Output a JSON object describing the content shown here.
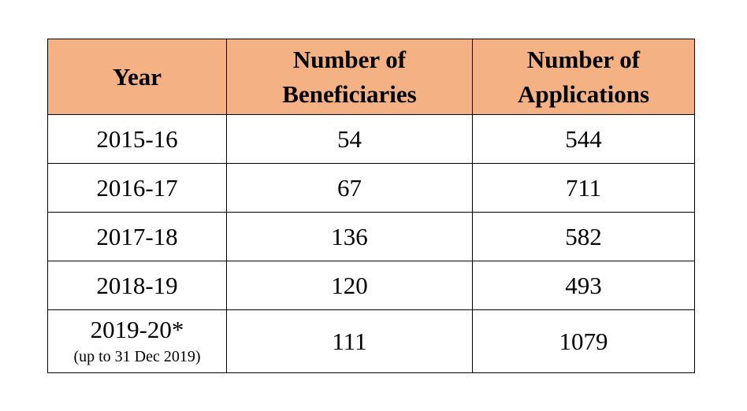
{
  "table": {
    "headers": {
      "year": "Year",
      "beneficiaries_line1": "Number of",
      "beneficiaries_line2": "Beneficiaries",
      "applications_line1": "Number of",
      "applications_line2": "Applications"
    },
    "rows": [
      {
        "year": "2015-16",
        "beneficiaries": "54",
        "applications": "544",
        "note": ""
      },
      {
        "year": "2016-17",
        "beneficiaries": "67",
        "applications": "711",
        "note": ""
      },
      {
        "year": "2017-18",
        "beneficiaries": "136",
        "applications": "582",
        "note": ""
      },
      {
        "year": "2018-19",
        "beneficiaries": "120",
        "applications": "493",
        "note": ""
      },
      {
        "year": "2019-20*",
        "beneficiaries": "111",
        "applications": "1079",
        "note": "(up to 31 Dec 2019)"
      }
    ],
    "colors": {
      "header_background": "#f4b183",
      "border": "#000000"
    }
  }
}
